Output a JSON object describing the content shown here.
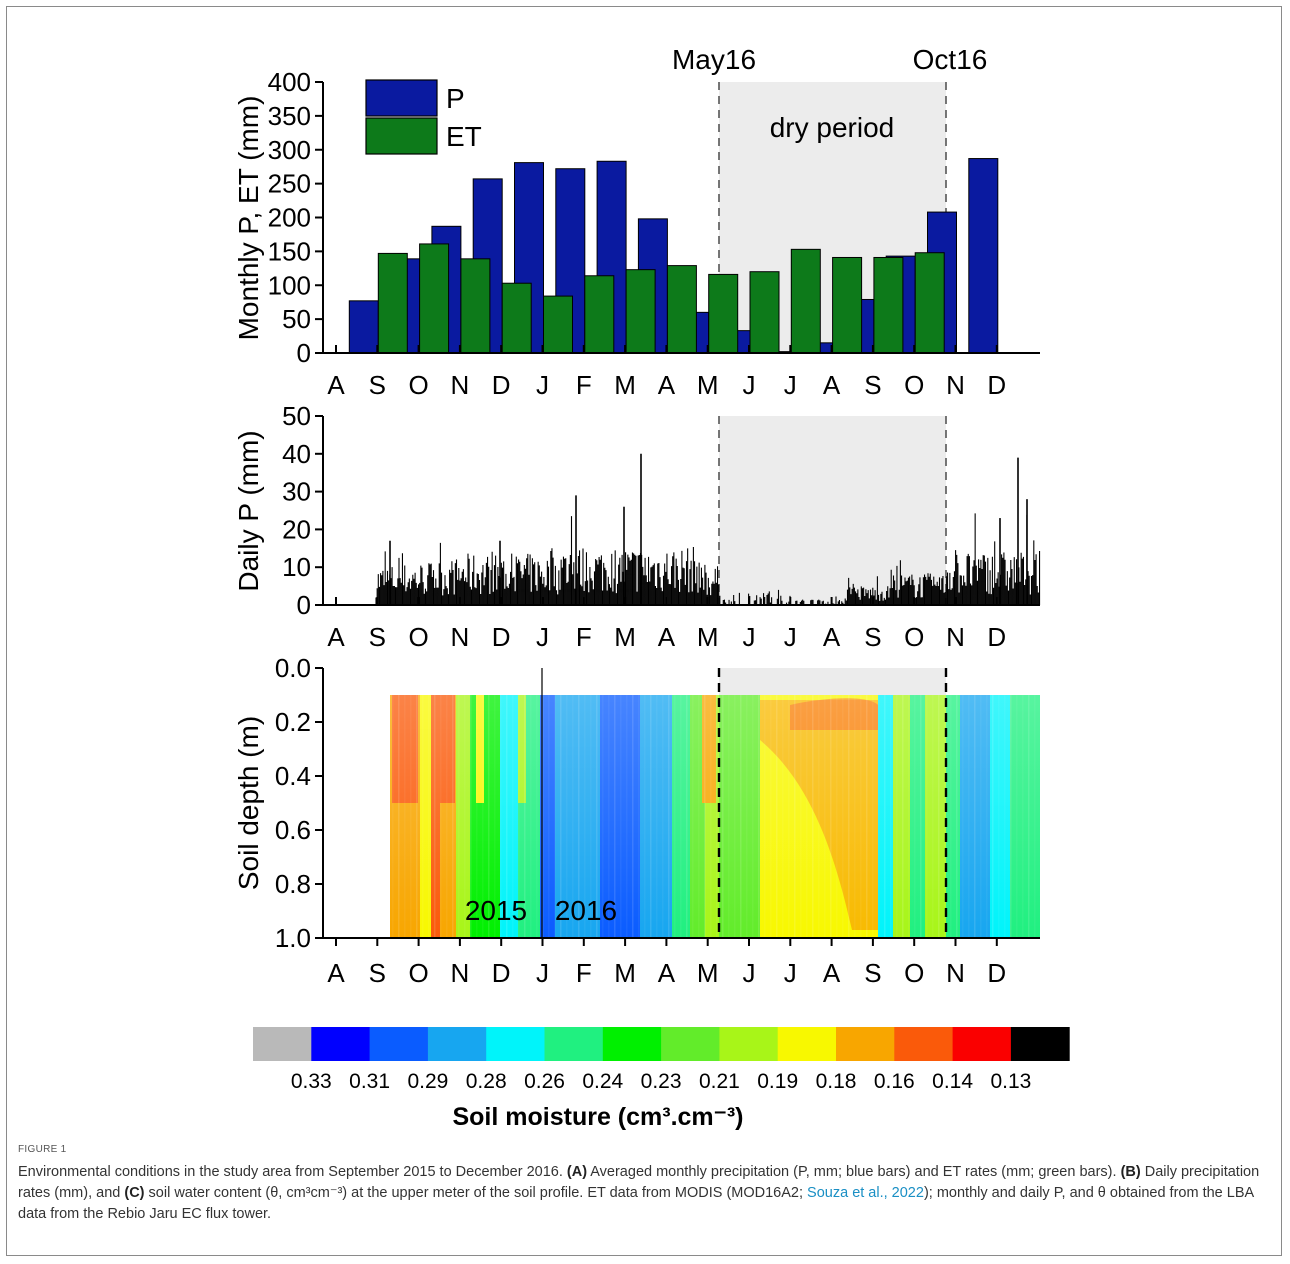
{
  "figure_label": "FIGURE 1",
  "caption": {
    "s1": "Environmental conditions in the study area from September 2015 to December 2016. ",
    "a": "(A)",
    "s2": " Averaged monthly precipitation (P, mm; blue bars) and ET rates (mm; green bars). ",
    "b": "(B)",
    "s3": " Daily precipitation rates (mm), and ",
    "c": "(C)",
    "s4": " soil water content (θ, cm³cm⁻³) at the upper meter of the soil profile. ET data from MODIS (MOD16A2; ",
    "link": "Souza et al., 2022",
    "s5": "); monthly and daily P, and θ obtained from the LBA data from the Rebio Jaru EC flux tower."
  },
  "chart_data": [
    {
      "type": "bar",
      "ylabel": "Monthly P, ET (mm)",
      "ylim": [
        0,
        400
      ],
      "yticks": [
        0,
        50,
        100,
        150,
        200,
        250,
        300,
        350,
        400
      ],
      "categories": [
        "A",
        "S",
        "O",
        "N",
        "D",
        "J",
        "F",
        "M",
        "A",
        "M",
        "J",
        "J",
        "A",
        "S",
        "O",
        "N",
        "D"
      ],
      "series": [
        {
          "name": "P",
          "color": "#0a1aa0",
          "values": [
            null,
            77,
            139,
            187,
            257,
            281,
            272,
            283,
            198,
            60,
            33,
            2,
            15,
            79,
            143,
            208,
            287
          ]
        },
        {
          "name": "ET",
          "color": "#0d7a1a",
          "values": [
            null,
            147,
            161,
            139,
            103,
            84,
            114,
            123,
            129,
            116,
            120,
            153,
            141,
            141,
            148,
            null,
            null
          ]
        }
      ],
      "legend": "top-left",
      "shaded_period": {
        "label": "dry period",
        "start_label": "May16",
        "end_label": "Oct16"
      }
    },
    {
      "type": "bar",
      "ylabel": "Daily P (mm)",
      "ylim": [
        0,
        50
      ],
      "yticks": [
        0,
        10,
        20,
        30,
        40,
        50
      ],
      "categories": [
        "A",
        "S",
        "O",
        "N",
        "D",
        "J",
        "F",
        "M",
        "A",
        "M",
        "J",
        "J",
        "A",
        "S",
        "O",
        "N",
        "D"
      ],
      "color": "#000000"
    },
    {
      "type": "heatmap",
      "ylabel": "Soil depth (m)",
      "ylim": [
        1.0,
        0.0
      ],
      "yticks": [
        "0.0",
        "0.2",
        "0.4",
        "0.6",
        "0.8",
        "1.0"
      ],
      "categories": [
        "A",
        "S",
        "O",
        "N",
        "D",
        "J",
        "F",
        "M",
        "A",
        "M",
        "J",
        "J",
        "A",
        "S",
        "O",
        "N",
        "D"
      ],
      "year_labels": [
        "2015",
        "2016"
      ],
      "colorbar": {
        "label": "Soil moisture (cm³.cm⁻³)",
        "ticks": [
          "0.33",
          "0.31",
          "0.29",
          "0.28",
          "0.26",
          "0.24",
          "0.23",
          "0.21",
          "0.19",
          "0.18",
          "0.16",
          "0.14",
          "0.13"
        ],
        "colors": [
          "#b9b9b9",
          "#0000ff",
          "#0a5cff",
          "#17a6f0",
          "#00f4fa",
          "#20f080",
          "#00f000",
          "#62ec2a",
          "#a8f518",
          "#f8f800",
          "#f8a600",
          "#fa5a0a",
          "#fa0000",
          "#000000"
        ]
      }
    }
  ]
}
